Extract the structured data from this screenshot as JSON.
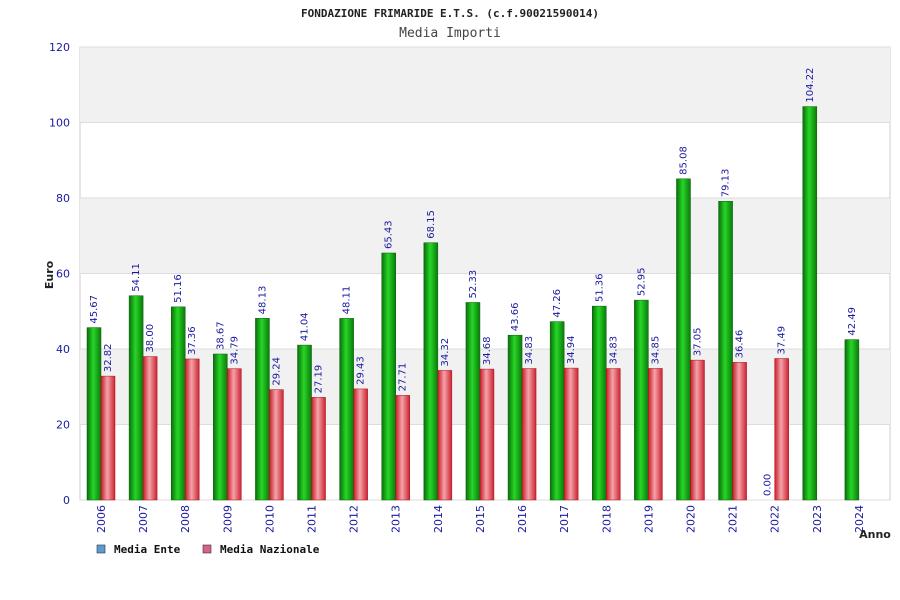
{
  "chart_data": {
    "type": "bar",
    "title": "FONDAZIONE FRIMARIDE E.T.S. (c.f.90021590014)",
    "subtitle": "Media Importi",
    "ylabel": "Euro",
    "xlabel": "Anno",
    "ylim": [
      0,
      120
    ],
    "yticks": [
      0,
      20,
      40,
      60,
      80,
      100,
      120
    ],
    "grid": true,
    "legend_position": "bottom-left",
    "categories": [
      "2006",
      "2007",
      "2008",
      "2009",
      "2010",
      "2011",
      "2012",
      "2013",
      "2014",
      "2015",
      "2016",
      "2017",
      "2018",
      "2019",
      "2020",
      "2021",
      "2022",
      "2023",
      "2024"
    ],
    "series": [
      {
        "name": "Media Ente",
        "color": "#19b319",
        "legend_color": "#5b9bd5",
        "values": [
          45.67,
          54.11,
          51.16,
          38.67,
          48.13,
          41.04,
          48.11,
          65.43,
          68.15,
          52.33,
          43.66,
          47.26,
          51.36,
          52.95,
          85.08,
          79.13,
          0.0,
          104.22,
          42.49
        ],
        "labels": [
          "45.67",
          "54.11",
          "51.16",
          "38.67",
          "48.13",
          "41.04",
          "48.11",
          "65.43",
          "68.15",
          "52.33",
          "43.66",
          "47.26",
          "51.36",
          "52.95",
          "85.08",
          "79.13",
          "0.00",
          "104.22",
          "42.49"
        ]
      },
      {
        "name": "Media Nazionale",
        "color": "#e8474f",
        "legend_color": "#d9608a",
        "values": [
          32.82,
          38.0,
          37.36,
          34.79,
          29.24,
          27.19,
          29.43,
          27.71,
          34.32,
          34.68,
          34.83,
          34.94,
          34.83,
          34.85,
          37.05,
          36.46,
          37.49,
          null,
          null
        ],
        "labels": [
          "32.82",
          "38.00",
          "37.36",
          "34.79",
          "29.24",
          "27.19",
          "29.43",
          "27.71",
          "34.32",
          "34.68",
          "34.83",
          "34.94",
          "34.83",
          "34.85",
          "37.05",
          "36.46",
          "37.49",
          null,
          null
        ]
      }
    ]
  }
}
